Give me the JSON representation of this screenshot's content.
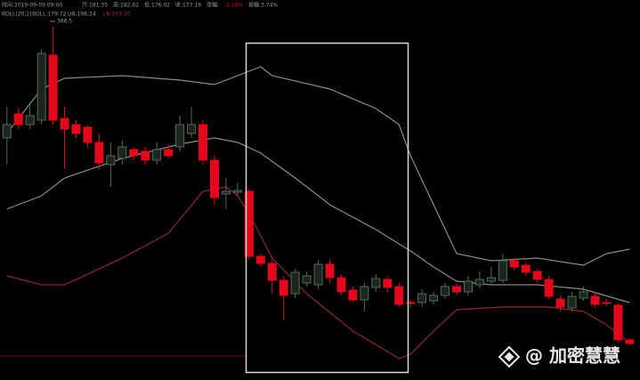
{
  "info_bar": {
    "time": "时间:2019-09-09 09:00",
    "open": "开:181.35",
    "high": "高:182.62",
    "low": "低:176.02",
    "close": "收:177.19",
    "change_label": "涨幅:",
    "change": "-2.16%",
    "amplitude": "振幅:3.74%"
  },
  "indicator_bar": {
    "name": "BOLL(20,2)",
    "mid": "BOLL:179.72",
    "upper": "UB:196.24",
    "lower": "LB:163.20"
  },
  "peak_label": "366.5",
  "watermark": "@ 加密慧慧",
  "chart_data": {
    "type": "candlestick",
    "up_color": "#56695a",
    "down_color": "#e3081c",
    "xlim": [
      -0.6,
      54.9
    ],
    "ylim": [
      133.25,
      240
    ],
    "open": [
      201.25,
      208,
      205,
      206.25,
      224.5,
      206.75,
      205,
      204.25,
      200,
      193.75,
      195.5,
      198,
      197.5,
      195,
      198,
      198.75,
      202.5,
      205,
      195,
      185.5,
      186,
      186.25,
      168,
      166,
      161.25,
      157.5,
      160.5,
      160,
      165.75,
      162,
      158.5,
      155.75,
      159.25,
      161.5,
      159.5,
      155,
      155,
      155.5,
      157,
      159.5,
      158,
      160,
      161,
      161.25,
      166.75,
      165.5,
      163.75,
      161.5,
      156,
      153.5,
      156.25,
      156.75,
      155,
      154.25,
      144.5
    ],
    "high": [
      210,
      209.5,
      211.25,
      226.25,
      232.5,
      210,
      206.25,
      205,
      202.5,
      200,
      200.5,
      198.75,
      198.75,
      200,
      199.5,
      207.5,
      210,
      206.25,
      196.25,
      190,
      188.75,
      187,
      168.75,
      167,
      162.5,
      164.5,
      163.75,
      167,
      167,
      163,
      159.5,
      160.5,
      163,
      162.5,
      160.5,
      155.75,
      158.75,
      158,
      160.5,
      160.5,
      162.5,
      163.75,
      165,
      168.75,
      167.5,
      166.25,
      164.5,
      162.5,
      157,
      158,
      159.5,
      158,
      156,
      155,
      145
    ],
    "low": [
      193.75,
      203.75,
      203.75,
      205,
      205,
      192.5,
      201.25,
      198.75,
      192.5,
      187.5,
      193.75,
      195,
      193.75,
      193.75,
      195.5,
      197.5,
      201.25,
      193.75,
      182.5,
      181.25,
      185,
      167,
      165,
      157.5,
      150,
      156.25,
      159.5,
      158.75,
      160.5,
      157,
      155,
      152.5,
      158,
      158,
      153.75,
      153.75,
      153.75,
      154.5,
      156,
      157,
      157,
      159,
      160,
      160.5,
      164,
      162.5,
      160.5,
      156,
      152.5,
      152.5,
      155.5,
      153.5,
      154,
      143.75,
      143
    ],
    "close": [
      205,
      205,
      207.5,
      225,
      206.25,
      203.75,
      202.5,
      200,
      194.25,
      196.25,
      198.75,
      196.25,
      195,
      198,
      196.25,
      205,
      205,
      195,
      184.5,
      186.25,
      186.5,
      168,
      166,
      161.25,
      157,
      163.5,
      162.5,
      165.75,
      162,
      158,
      155.75,
      159.5,
      161.75,
      159.25,
      154.5,
      154.75,
      157.5,
      157,
      159.5,
      158,
      161,
      161.5,
      162,
      166.75,
      165,
      163.5,
      161.5,
      156.75,
      153.75,
      156.75,
      158,
      154.5,
      154.75,
      144.5,
      143.5
    ],
    "overlays": [
      {
        "color": "#8a8a8a",
        "x": [
          0,
          3,
          5,
          10,
          15,
          18,
          21,
          22,
          23,
          28,
          32,
          34,
          35,
          37,
          39,
          42,
          46,
          50,
          52,
          54
        ],
        "values": [
          202.5,
          215,
          218,
          218.75,
          217.5,
          216.25,
          220,
          221.25,
          218.75,
          215,
          209.5,
          205,
          196.25,
          182.5,
          168.75,
          166.75,
          167.5,
          165.5,
          168.75,
          170
        ]
      },
      {
        "color": "#8a8a8a",
        "x": [
          0,
          3,
          5,
          10,
          15,
          18,
          20,
          22,
          25,
          28,
          32,
          35,
          37,
          39,
          42,
          46,
          50,
          54
        ],
        "values": [
          181.25,
          185,
          190,
          195.5,
          199.5,
          201.25,
          200,
          197,
          190,
          182.5,
          175.5,
          169.5,
          165,
          161,
          160,
          160,
          158.75,
          155
        ]
      },
      {
        "color": "#8b2a33",
        "x": [
          0,
          3,
          5,
          10,
          14,
          17,
          19,
          20,
          21,
          23,
          26,
          30,
          33,
          34,
          35,
          37,
          39,
          43,
          47,
          50,
          52,
          54
        ],
        "values": [
          162.5,
          160,
          160,
          167.5,
          174.5,
          186.25,
          187.5,
          185,
          180,
          167.5,
          157.5,
          147,
          141.25,
          139.25,
          140.5,
          147,
          153,
          153.75,
          153.75,
          152.5,
          148.75,
          143.75
        ]
      }
    ]
  }
}
